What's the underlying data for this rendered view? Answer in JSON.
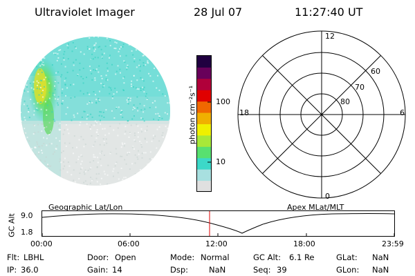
{
  "header": {
    "title": "Ultraviolet Imager",
    "date": "28 Jul 07",
    "time": "11:27:40 UT"
  },
  "colorbar": {
    "label": "photon cm⁻²s⁻¹",
    "tick_100": "100",
    "tick_10": "10",
    "colors": [
      "#e0e0e0",
      "#a8e0e0",
      "#3cd8c8",
      "#58e070",
      "#a8e838",
      "#f0f000",
      "#f0b000",
      "#f06800",
      "#e00000",
      "#b0003a",
      "#68005a",
      "#200040"
    ]
  },
  "polar_grid": {
    "mlt_labels": [
      "12",
      "18",
      "6",
      "0"
    ],
    "mlat_labels": [
      "60",
      "70",
      "80"
    ]
  },
  "timeline": {
    "left_title": "Geographic Lat/Lon",
    "right_title": "Apex MLat/MLT",
    "ylabel": "GC Alt",
    "y_max": "9.0",
    "y_min": "1.8",
    "ticks": [
      "00:00",
      "06:00",
      "12:00",
      "18:00",
      "23:59"
    ],
    "marker_time": "11:27:40"
  },
  "info": {
    "flt_label": "Flt:",
    "flt_value": "LBHL",
    "door_label": "Door:",
    "door_value": "Open",
    "mode_label": "Mode:",
    "mode_value": "Normal",
    "gcalt_label": "GC Alt:",
    "gcalt_value": "6.1 Re",
    "glat_label": "GLat:",
    "glat_value": "NaN",
    "ip_label": "IP:",
    "ip_value": "36.0",
    "gain_label": "Gain:",
    "gain_value": "14",
    "dsp_label": "Dsp:",
    "dsp_value": "NaN",
    "seq_label": "Seq:",
    "seq_value": "39",
    "glon_label": "GLon:",
    "glon_value": "NaN"
  }
}
